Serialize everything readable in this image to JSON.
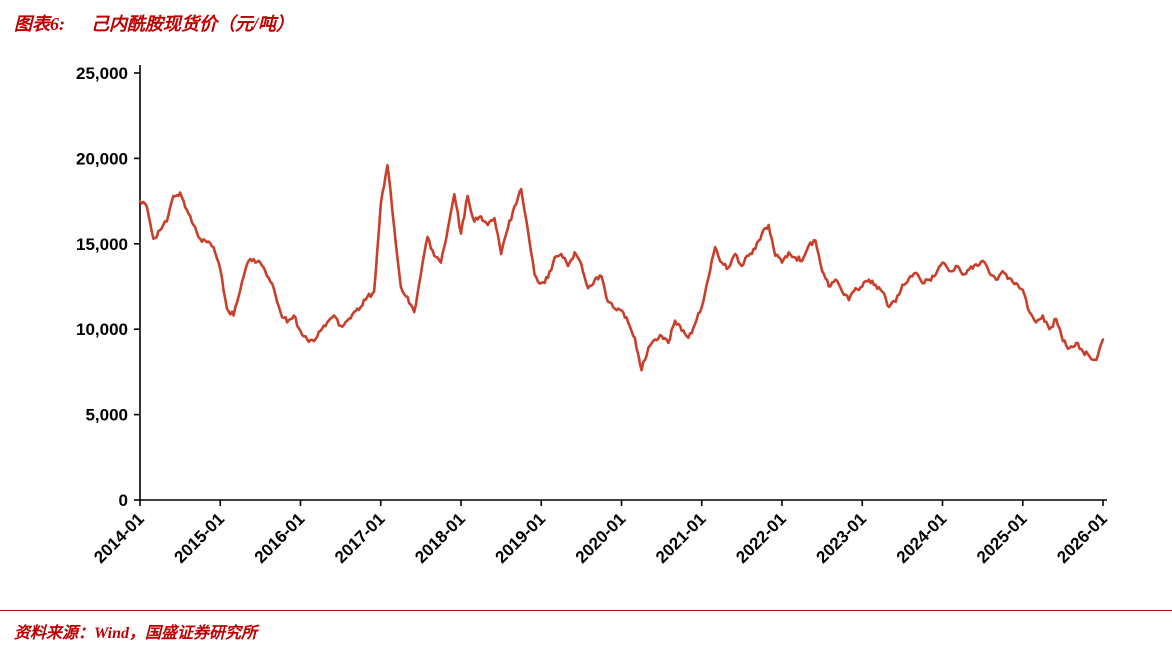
{
  "header": {
    "figure_label": "图表6:",
    "title": "己内酰胺现货价（元/吨）"
  },
  "footer": {
    "source": "资料来源：Wind，国盛证券研究所"
  },
  "colors": {
    "accent": "#c00000",
    "line": "#c8402b",
    "axis": "#000000",
    "tick_text": "#000000"
  },
  "chart_data": {
    "type": "line",
    "title": "己内酰胺现货价（元/吨）",
    "xlabel": "",
    "ylabel": "",
    "unit": "元/吨",
    "ylim": [
      0,
      25000
    ],
    "y_ticks": [
      0,
      5000,
      10000,
      15000,
      20000,
      25000
    ],
    "y_tick_labels": [
      "0",
      "5,000",
      "10,000",
      "15,000",
      "20,000",
      "25,000"
    ],
    "x_start": "2014-01",
    "x_interval": "monthly",
    "tick_every": 12,
    "x_tick_labels": [
      "2014-01",
      "2015-01",
      "2016-01",
      "2017-01",
      "2018-01",
      "2019-01",
      "2020-01",
      "2021-01",
      "2022-01",
      "2023-01",
      "2024-01",
      "2025-01",
      "2026-01"
    ],
    "legend": [],
    "grid": false,
    "values": [
      17500,
      17200,
      15300,
      15800,
      16300,
      17800,
      18000,
      17000,
      16100,
      15300,
      15100,
      14800,
      13500,
      11200,
      10800,
      12300,
      13800,
      14100,
      13900,
      13100,
      12400,
      11000,
      10400,
      10800,
      9900,
      9400,
      9300,
      9900,
      10400,
      10800,
      10200,
      10500,
      11000,
      11300,
      11900,
      12200,
      17300,
      19600,
      16000,
      12500,
      11900,
      11000,
      13200,
      15400,
      14300,
      13900,
      15800,
      17900,
      15600,
      17800,
      16300,
      16600,
      16100,
      16500,
      14400,
      15900,
      17200,
      18200,
      15800,
      13200,
      12700,
      13000,
      14200,
      14400,
      13700,
      14500,
      13800,
      12400,
      12900,
      13100,
      11600,
      11200,
      11100,
      10400,
      9500,
      7600,
      8900,
      9400,
      9600,
      9200,
      10500,
      9900,
      9500,
      10300,
      11300,
      13000,
      14800,
      13900,
      13600,
      14400,
      13700,
      14300,
      14700,
      15600,
      16100,
      14300,
      13900,
      14500,
      14200,
      14000,
      14900,
      15200,
      13400,
      12500,
      12900,
      12200,
      11700,
      12400,
      12500,
      12900,
      12600,
      12200,
      11300,
      11600,
      12600,
      13000,
      13300,
      12700,
      12900,
      13200,
      13900,
      13400,
      13700,
      13200,
      13500,
      13800,
      14000,
      13300,
      12900,
      13400,
      13000,
      12700,
      12300,
      11000,
      10400,
      10800,
      10000,
      10600,
      9300,
      8900,
      9200,
      8700,
      8400,
      8200,
      9400
    ]
  }
}
